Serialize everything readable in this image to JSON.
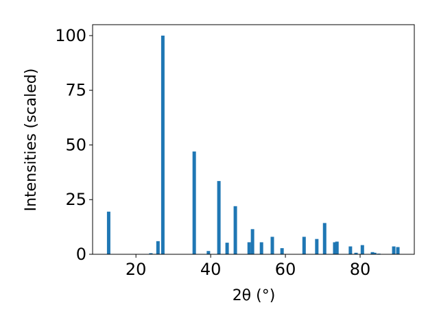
{
  "chart_data": {
    "type": "bar",
    "xlabel": "2θ (°)",
    "ylabel": "Intensities (scaled)",
    "x": [
      12.7,
      24.0,
      25.9,
      27.2,
      35.6,
      39.4,
      42.2,
      44.4,
      46.6,
      50.3,
      51.2,
      53.6,
      56.5,
      59.1,
      65.0,
      68.4,
      70.5,
      73.2,
      73.8,
      77.4,
      78.9,
      80.6,
      83.3,
      83.9,
      85.0,
      89.0,
      90.1
    ],
    "values": [
      19.5,
      0.5,
      6,
      100,
      47,
      1.5,
      33.5,
      5.3,
      22,
      5.5,
      11.5,
      5.5,
      8,
      2.8,
      8,
      7,
      14.3,
      5.5,
      5.8,
      3.6,
      0.7,
      4.2,
      1,
      0.7,
      0.3,
      3.6,
      3.3
    ],
    "color": "#1f77b4",
    "xlim": [
      8.4,
      94.5
    ],
    "xticks": [
      20,
      40,
      60,
      80
    ],
    "ylim": [
      0,
      105
    ],
    "yticks": [
      0,
      25,
      50,
      75,
      100
    ]
  }
}
